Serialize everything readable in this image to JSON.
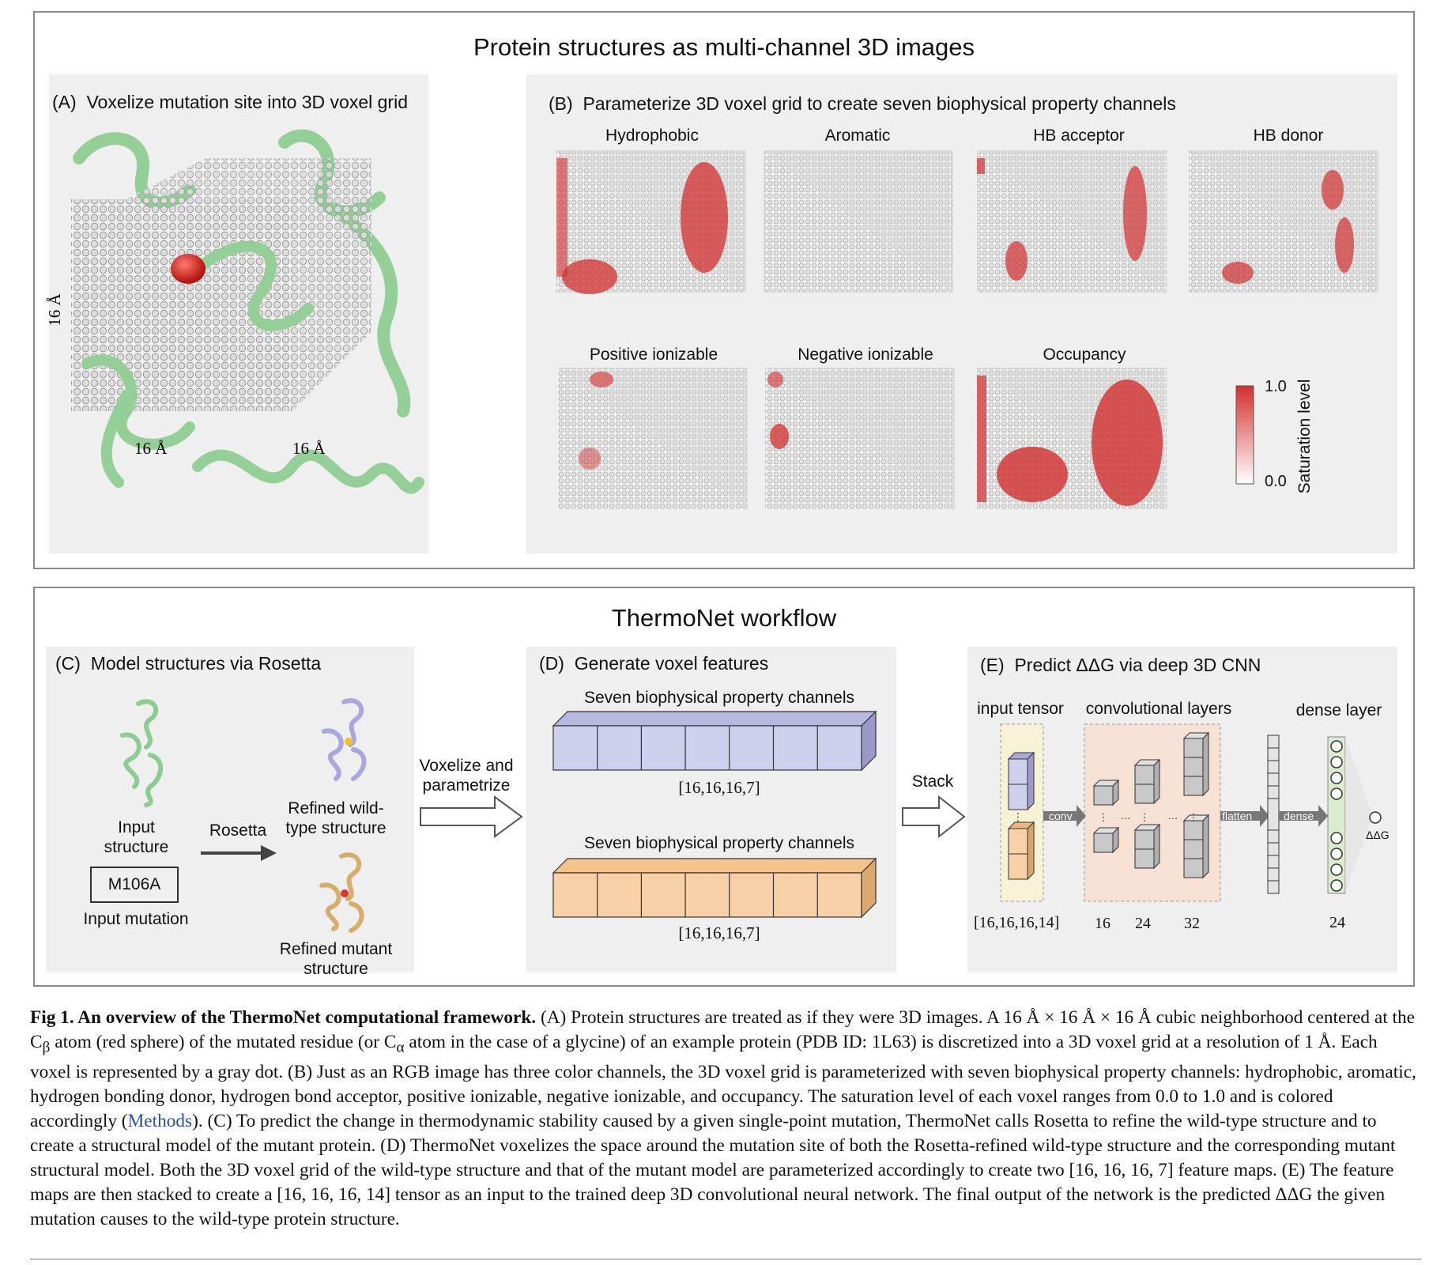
{
  "top_section": {
    "title": "Protein structures as multi-channel 3D images",
    "panel_a": {
      "letter": "(A)",
      "label": "Voxelize mutation site into 3D voxel grid",
      "dim_vertical": "16 Å",
      "dim_left": "16 Å",
      "dim_right": "16 Å"
    },
    "panel_b": {
      "letter": "(B)",
      "label": "Parameterize 3D voxel grid to create seven biophysical property channels",
      "channels": [
        "Hydrophobic",
        "Aromatic",
        "HB acceptor",
        "HB donor",
        "Positive ionizable",
        "Negative ionizable",
        "Occupancy"
      ],
      "colorbar": {
        "max": "1.0",
        "min": "0.0",
        "label": "Saturation level",
        "color_high": "#d32f2f",
        "color_low": "#ffffff"
      }
    }
  },
  "bottom_section": {
    "title": "ThermoNet workflow",
    "panel_c": {
      "letter": "(C)",
      "label": "Model structures via Rosetta",
      "input_structure": "Input structure",
      "rosetta": "Rosetta",
      "refined_wt": "Refined wild-type structure",
      "refined_mut": "Refined mutant structure",
      "mutation": "M106A",
      "input_mutation": "Input mutation"
    },
    "voxelize_arrow": "Voxelize and parametrize",
    "panel_d": {
      "letter": "(D)",
      "label": "Generate voxel features",
      "top_title": "Seven biophysical property channels",
      "top_dims": "[16,16,16,7]",
      "bottom_title": "Seven biophysical property channels",
      "bottom_dims": "[16,16,16,7]",
      "color_wt": "#cfd0ee",
      "color_mut": "#f8d2a6"
    },
    "stack_arrow": "Stack",
    "panel_e": {
      "letter": "(E)",
      "label": "Predict ΔΔG via deep 3D CNN",
      "input_tensor": "input tensor",
      "conv_layers": "convolutional layers",
      "dense_layer": "dense layer",
      "conv": "conv",
      "flatten": "flatten",
      "dense": "dense",
      "output": "ΔΔG",
      "input_dims": "[16,16,16,14]",
      "filters": [
        "16",
        "24",
        "32"
      ],
      "dense_units": "24"
    }
  },
  "caption": {
    "bold": "Fig 1. An overview of the ThermoNet computational framework.",
    "part1": " (A) Protein structures are treated as if they were 3D images. A 16 Å × 16 Å × 16 Å cubic neighborhood centered at the C",
    "sub_beta": "β",
    "part2": " atom (red sphere) of the mutated residue (or C",
    "sub_alpha": "α",
    "part3": " atom in the case of a glycine) of an example protein (PDB ID: 1L63) is discretized into a 3D voxel grid at a resolution of 1 Å. Each voxel is represented by a gray dot. (B) Just as an RGB image has three color channels, the 3D voxel grid is parameterized with seven biophysical property channels: hydrophobic, aromatic, hydrogen bonding donor, hydrogen bond acceptor, positive ionizable, negative ionizable, and occupancy. The saturation level of each voxel ranges from 0.0 to 1.0 and is colored accordingly (",
    "link": "Methods",
    "part4": "). (C) To predict the change in thermodynamic stability caused by a given single-point mutation, ThermoNet calls Rosetta to refine the wild-type structure and to create a structural model of the mutant protein. (D) ThermoNet voxelizes the space around the mutation site of both the Rosetta-refined wild-type structure and the corresponding mutant structural model. Both the 3D voxel grid of the wild-type structure and that of the mutant model are parameterized accordingly to create two [16, 16, 16, 7] feature maps. (E) The feature maps are then stacked to create a [16, 16, 16, 14] tensor as an input to the trained deep 3D convolutional neural network. The final output of the network is the predicted ΔΔG the given mutation causes to the wild-type protein structure."
  }
}
